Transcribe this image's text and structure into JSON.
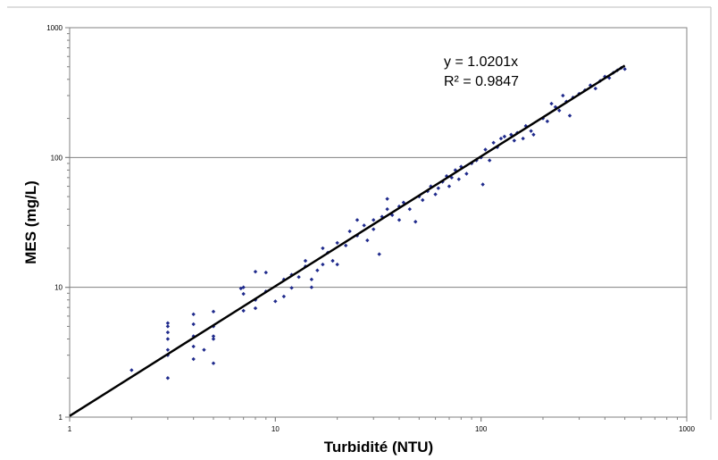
{
  "chart_data": {
    "type": "scatter",
    "xlabel": "Turbidité (NTU)",
    "ylabel": "MES (mg/L)",
    "x_scale": "log",
    "y_scale": "log",
    "xlim": [
      1,
      1000
    ],
    "ylim": [
      1,
      1000
    ],
    "x_ticks": [
      "1",
      "10",
      "100",
      "1000"
    ],
    "y_ticks": [
      "1",
      "10",
      "100",
      "1000"
    ],
    "grid": "horizontal major lines",
    "marker_color": "#1f2a8c",
    "line_color": "#000000",
    "trendline": {
      "slope": 1.0201,
      "intercept": 0,
      "x_range": [
        1,
        500
      ]
    },
    "annotations": {
      "equation": "y = 1.0201x",
      "r2": "R² = 0.9847"
    },
    "points": [
      [
        2,
        2.3
      ],
      [
        3,
        2.0
      ],
      [
        3,
        3.0
      ],
      [
        3,
        3.3
      ],
      [
        3,
        4.0
      ],
      [
        3,
        4.5
      ],
      [
        3,
        5.0
      ],
      [
        3,
        5.3
      ],
      [
        4,
        2.8
      ],
      [
        4,
        3.5
      ],
      [
        4,
        4.2
      ],
      [
        4,
        5.2
      ],
      [
        4,
        6.2
      ],
      [
        4.5,
        3.3
      ],
      [
        5,
        2.6
      ],
      [
        5,
        4.0
      ],
      [
        5,
        5.0
      ],
      [
        5,
        6.5
      ],
      [
        5,
        4.2
      ],
      [
        6.8,
        9.8
      ],
      [
        7,
        6.6
      ],
      [
        7,
        8.9
      ],
      [
        7,
        10.0
      ],
      [
        8,
        6.9
      ],
      [
        8,
        8.0
      ],
      [
        8,
        13.2
      ],
      [
        9,
        9.3
      ],
      [
        9,
        13.0
      ],
      [
        10,
        7.8
      ],
      [
        11,
        8.5
      ],
      [
        11,
        11.5
      ],
      [
        12,
        9.9
      ],
      [
        12,
        12.5
      ],
      [
        13,
        12.0
      ],
      [
        14,
        14.5
      ],
      [
        14,
        16.0
      ],
      [
        15,
        10.0
      ],
      [
        15,
        11.5
      ],
      [
        16,
        13.5
      ],
      [
        17,
        15.0
      ],
      [
        17,
        20.0
      ],
      [
        18,
        18.5
      ],
      [
        19,
        16.0
      ],
      [
        20,
        22.0
      ],
      [
        20,
        15.0
      ],
      [
        22,
        21.0
      ],
      [
        23,
        27.0
      ],
      [
        25,
        25.0
      ],
      [
        25,
        33.0
      ],
      [
        27,
        30.0
      ],
      [
        28,
        23.0
      ],
      [
        30,
        28.0
      ],
      [
        30,
        33.0
      ],
      [
        32,
        18.0
      ],
      [
        33,
        35.0
      ],
      [
        35,
        40.0
      ],
      [
        35,
        48.0
      ],
      [
        37,
        36.0
      ],
      [
        40,
        42.0
      ],
      [
        40,
        33.0
      ],
      [
        42,
        45.0
      ],
      [
        45,
        40.0
      ],
      [
        48,
        32.0
      ],
      [
        50,
        50.0
      ],
      [
        52,
        47.0
      ],
      [
        55,
        55.0
      ],
      [
        57,
        60.0
      ],
      [
        60,
        52.0
      ],
      [
        62,
        58.0
      ],
      [
        65,
        65.0
      ],
      [
        68,
        72.0
      ],
      [
        70,
        60.0
      ],
      [
        72,
        70.0
      ],
      [
        75,
        80.0
      ],
      [
        78,
        68.0
      ],
      [
        80,
        85.0
      ],
      [
        85,
        75.0
      ],
      [
        90,
        90.0
      ],
      [
        95,
        95.0
      ],
      [
        100,
        100.0
      ],
      [
        102,
        62.0
      ],
      [
        105,
        115.0
      ],
      [
        110,
        95.0
      ],
      [
        115,
        130.0
      ],
      [
        120,
        120.0
      ],
      [
        125,
        140.0
      ],
      [
        130,
        145.0
      ],
      [
        140,
        150.0
      ],
      [
        145,
        135.0
      ],
      [
        150,
        155.0
      ],
      [
        160,
        140.0
      ],
      [
        165,
        175.0
      ],
      [
        175,
        160.0
      ],
      [
        180,
        150.0
      ],
      [
        200,
        200.0
      ],
      [
        210,
        190.0
      ],
      [
        220,
        260.0
      ],
      [
        230,
        245.0
      ],
      [
        240,
        230.0
      ],
      [
        250,
        300.0
      ],
      [
        260,
        270.0
      ],
      [
        270,
        210.0
      ],
      [
        280,
        290.0
      ],
      [
        300,
        310.0
      ],
      [
        320,
        330.0
      ],
      [
        340,
        360.0
      ],
      [
        360,
        340.0
      ],
      [
        380,
        390.0
      ],
      [
        400,
        420.0
      ],
      [
        420,
        410.0
      ],
      [
        440,
        450.0
      ],
      [
        460,
        470.0
      ],
      [
        480,
        490.0
      ],
      [
        500,
        480.0
      ]
    ]
  }
}
